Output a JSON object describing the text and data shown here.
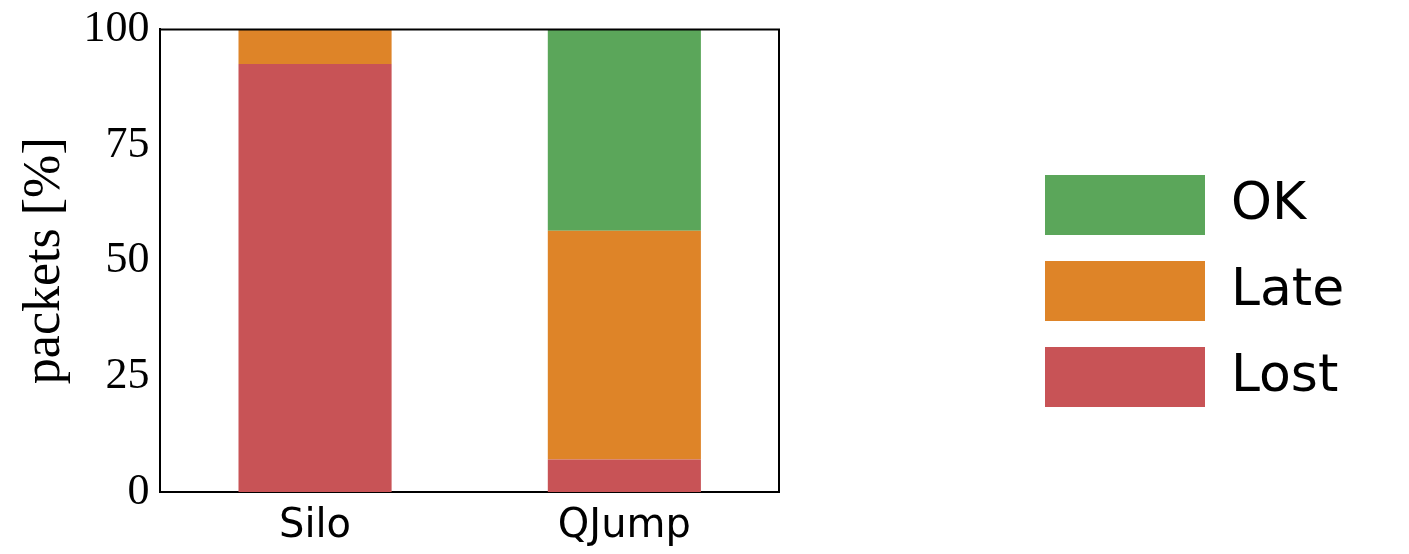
{
  "chart_data": {
    "type": "bar",
    "ylabel": "packets [%]",
    "categories": [
      "Silo",
      "QJump"
    ],
    "stacked": true,
    "series": [
      {
        "name": "Lost",
        "color": "#c85356",
        "values": [
          92.5,
          7
        ]
      },
      {
        "name": "Late",
        "color": "#de8428",
        "values": [
          7.5,
          49.5
        ]
      },
      {
        "name": "OK",
        "color": "#5ba65a",
        "values": [
          0,
          43.5
        ]
      }
    ],
    "ylim": [
      0,
      100
    ],
    "yticks": [
      0,
      25,
      50,
      75,
      100
    ],
    "grid": false,
    "legend": "right"
  }
}
